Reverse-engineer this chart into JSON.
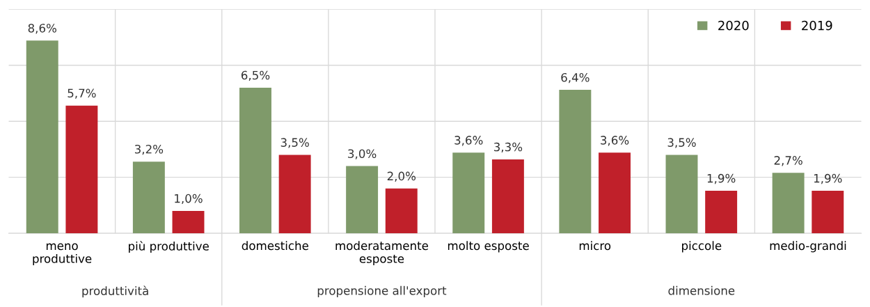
{
  "chart_data": {
    "type": "bar",
    "categories": [
      "meno\nproduttive",
      "più produttive",
      "domestiche",
      "moderatamente\nesposte",
      "molto esposte",
      "micro",
      "piccole",
      "medio-grandi"
    ],
    "series": [
      {
        "name": "2020",
        "color": "#7f9a6a",
        "values": [
          8.6,
          3.2,
          6.5,
          3.0,
          3.6,
          6.4,
          3.5,
          2.7
        ],
        "value_labels": [
          "8,6%",
          "3,2%",
          "6,5%",
          "3,0%",
          "3,6%",
          "6,4%",
          "3,5%",
          "2,7%"
        ]
      },
      {
        "name": "2019",
        "color": "#c0202a",
        "values": [
          5.7,
          1.0,
          3.5,
          2.0,
          3.3,
          3.6,
          1.9,
          1.9
        ],
        "value_labels": [
          "5,7%",
          "1,0%",
          "3,5%",
          "2,0%",
          "3,3%",
          "3,6%",
          "1,9%",
          "1,9%"
        ]
      }
    ],
    "annotations": [
      "produttività",
      "propensione all'export",
      "dimensione"
    ],
    "ylim": [
      0,
      10
    ],
    "yticks": [
      {
        "value": 0,
        "label": null
      },
      {
        "value": 2.5,
        "label": null
      },
      {
        "value": 5,
        "label": null
      },
      {
        "value": 7.5,
        "label": null
      },
      {
        "value": 10,
        "label": null
      }
    ],
    "tick_labels": "x",
    "grid": "y",
    "legend": "top right"
  }
}
